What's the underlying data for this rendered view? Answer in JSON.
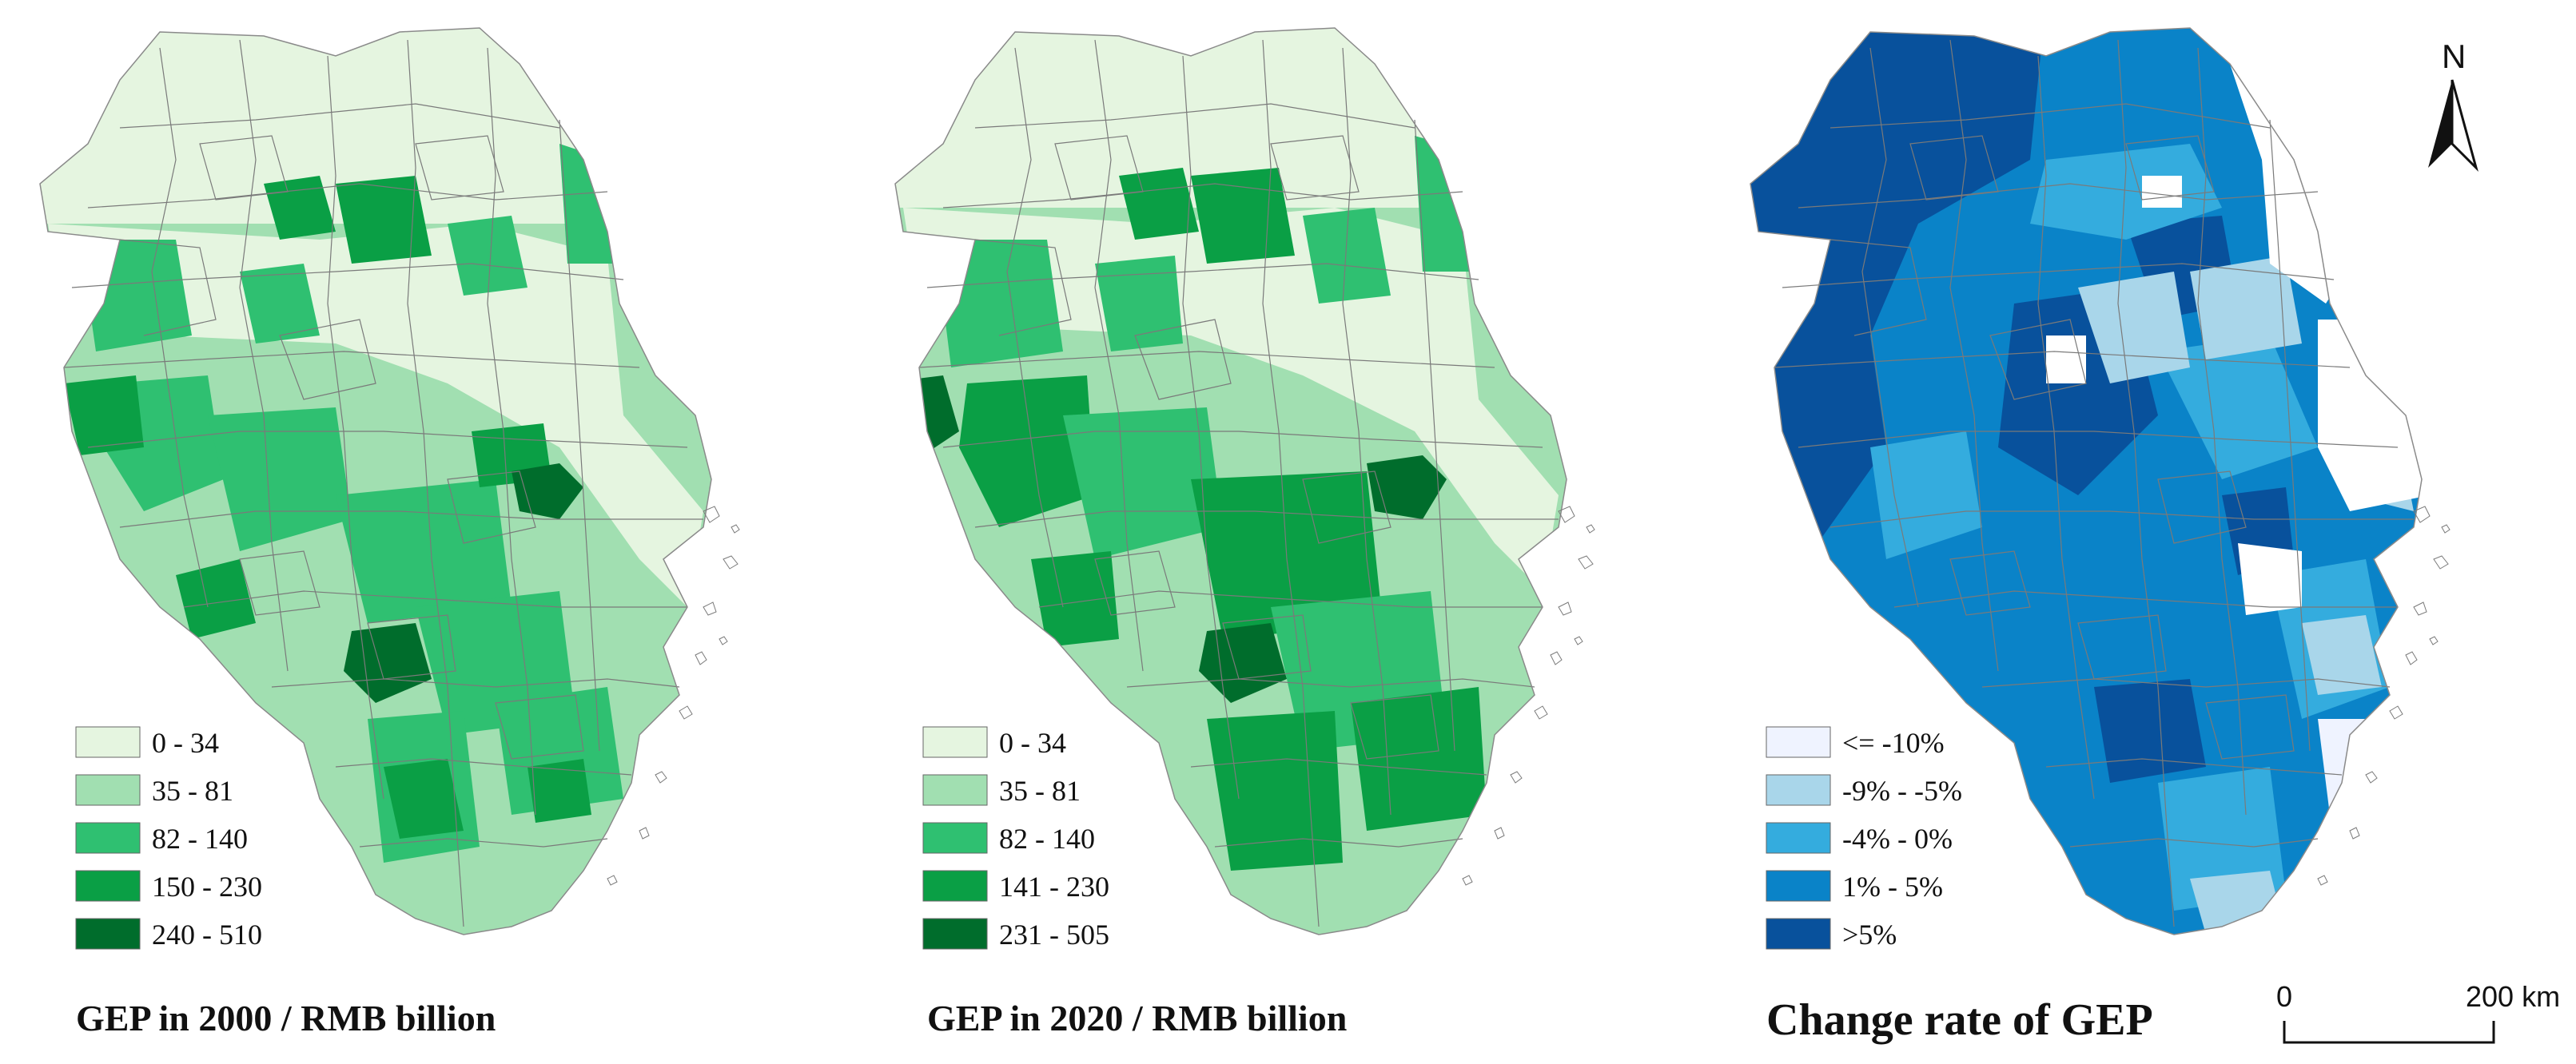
{
  "panels": [
    {
      "id": "gep2000",
      "title": "GEP in 2000 / RMB billion",
      "legend": [
        {
          "label": "0 - 34",
          "color": "#e5f5e0"
        },
        {
          "label": "35 - 81",
          "color": "#a1dfb1"
        },
        {
          "label": "82 - 140",
          "color": "#2fc071"
        },
        {
          "label": "150 - 230",
          "color": "#0a9f45"
        },
        {
          "label": "240 - 510",
          "color": "#006d2c"
        }
      ]
    },
    {
      "id": "gep2020",
      "title": "GEP in 2020 / RMB billion",
      "legend": [
        {
          "label": "0 - 34",
          "color": "#e5f5e0"
        },
        {
          "label": "35 - 81",
          "color": "#a1dfb1"
        },
        {
          "label": "82 - 140",
          "color": "#2fc071"
        },
        {
          "label": "141 - 230",
          "color": "#0a9f45"
        },
        {
          "label": "231 - 505",
          "color": "#006d2c"
        }
      ]
    },
    {
      "id": "change",
      "title": "Change rate of GEP",
      "legend": [
        {
          "label": "<= -10%",
          "color": "#eff3ff"
        },
        {
          "label": "-9% - -5%",
          "color": "#a9d6ea"
        },
        {
          "label": "-4% - 0%",
          "color": "#34acde"
        },
        {
          "label": "1% - 5%",
          "color": "#0a83c8"
        },
        {
          "label": ">5%",
          "color": "#08519c"
        }
      ]
    }
  ],
  "north_arrow": {
    "label": "N"
  },
  "scale_bar": {
    "start_label": "0",
    "end_label": "200 km"
  },
  "colors": {
    "boundary": "#7a7a7a",
    "outline": "#8a8a8a",
    "background": "#ffffff"
  }
}
